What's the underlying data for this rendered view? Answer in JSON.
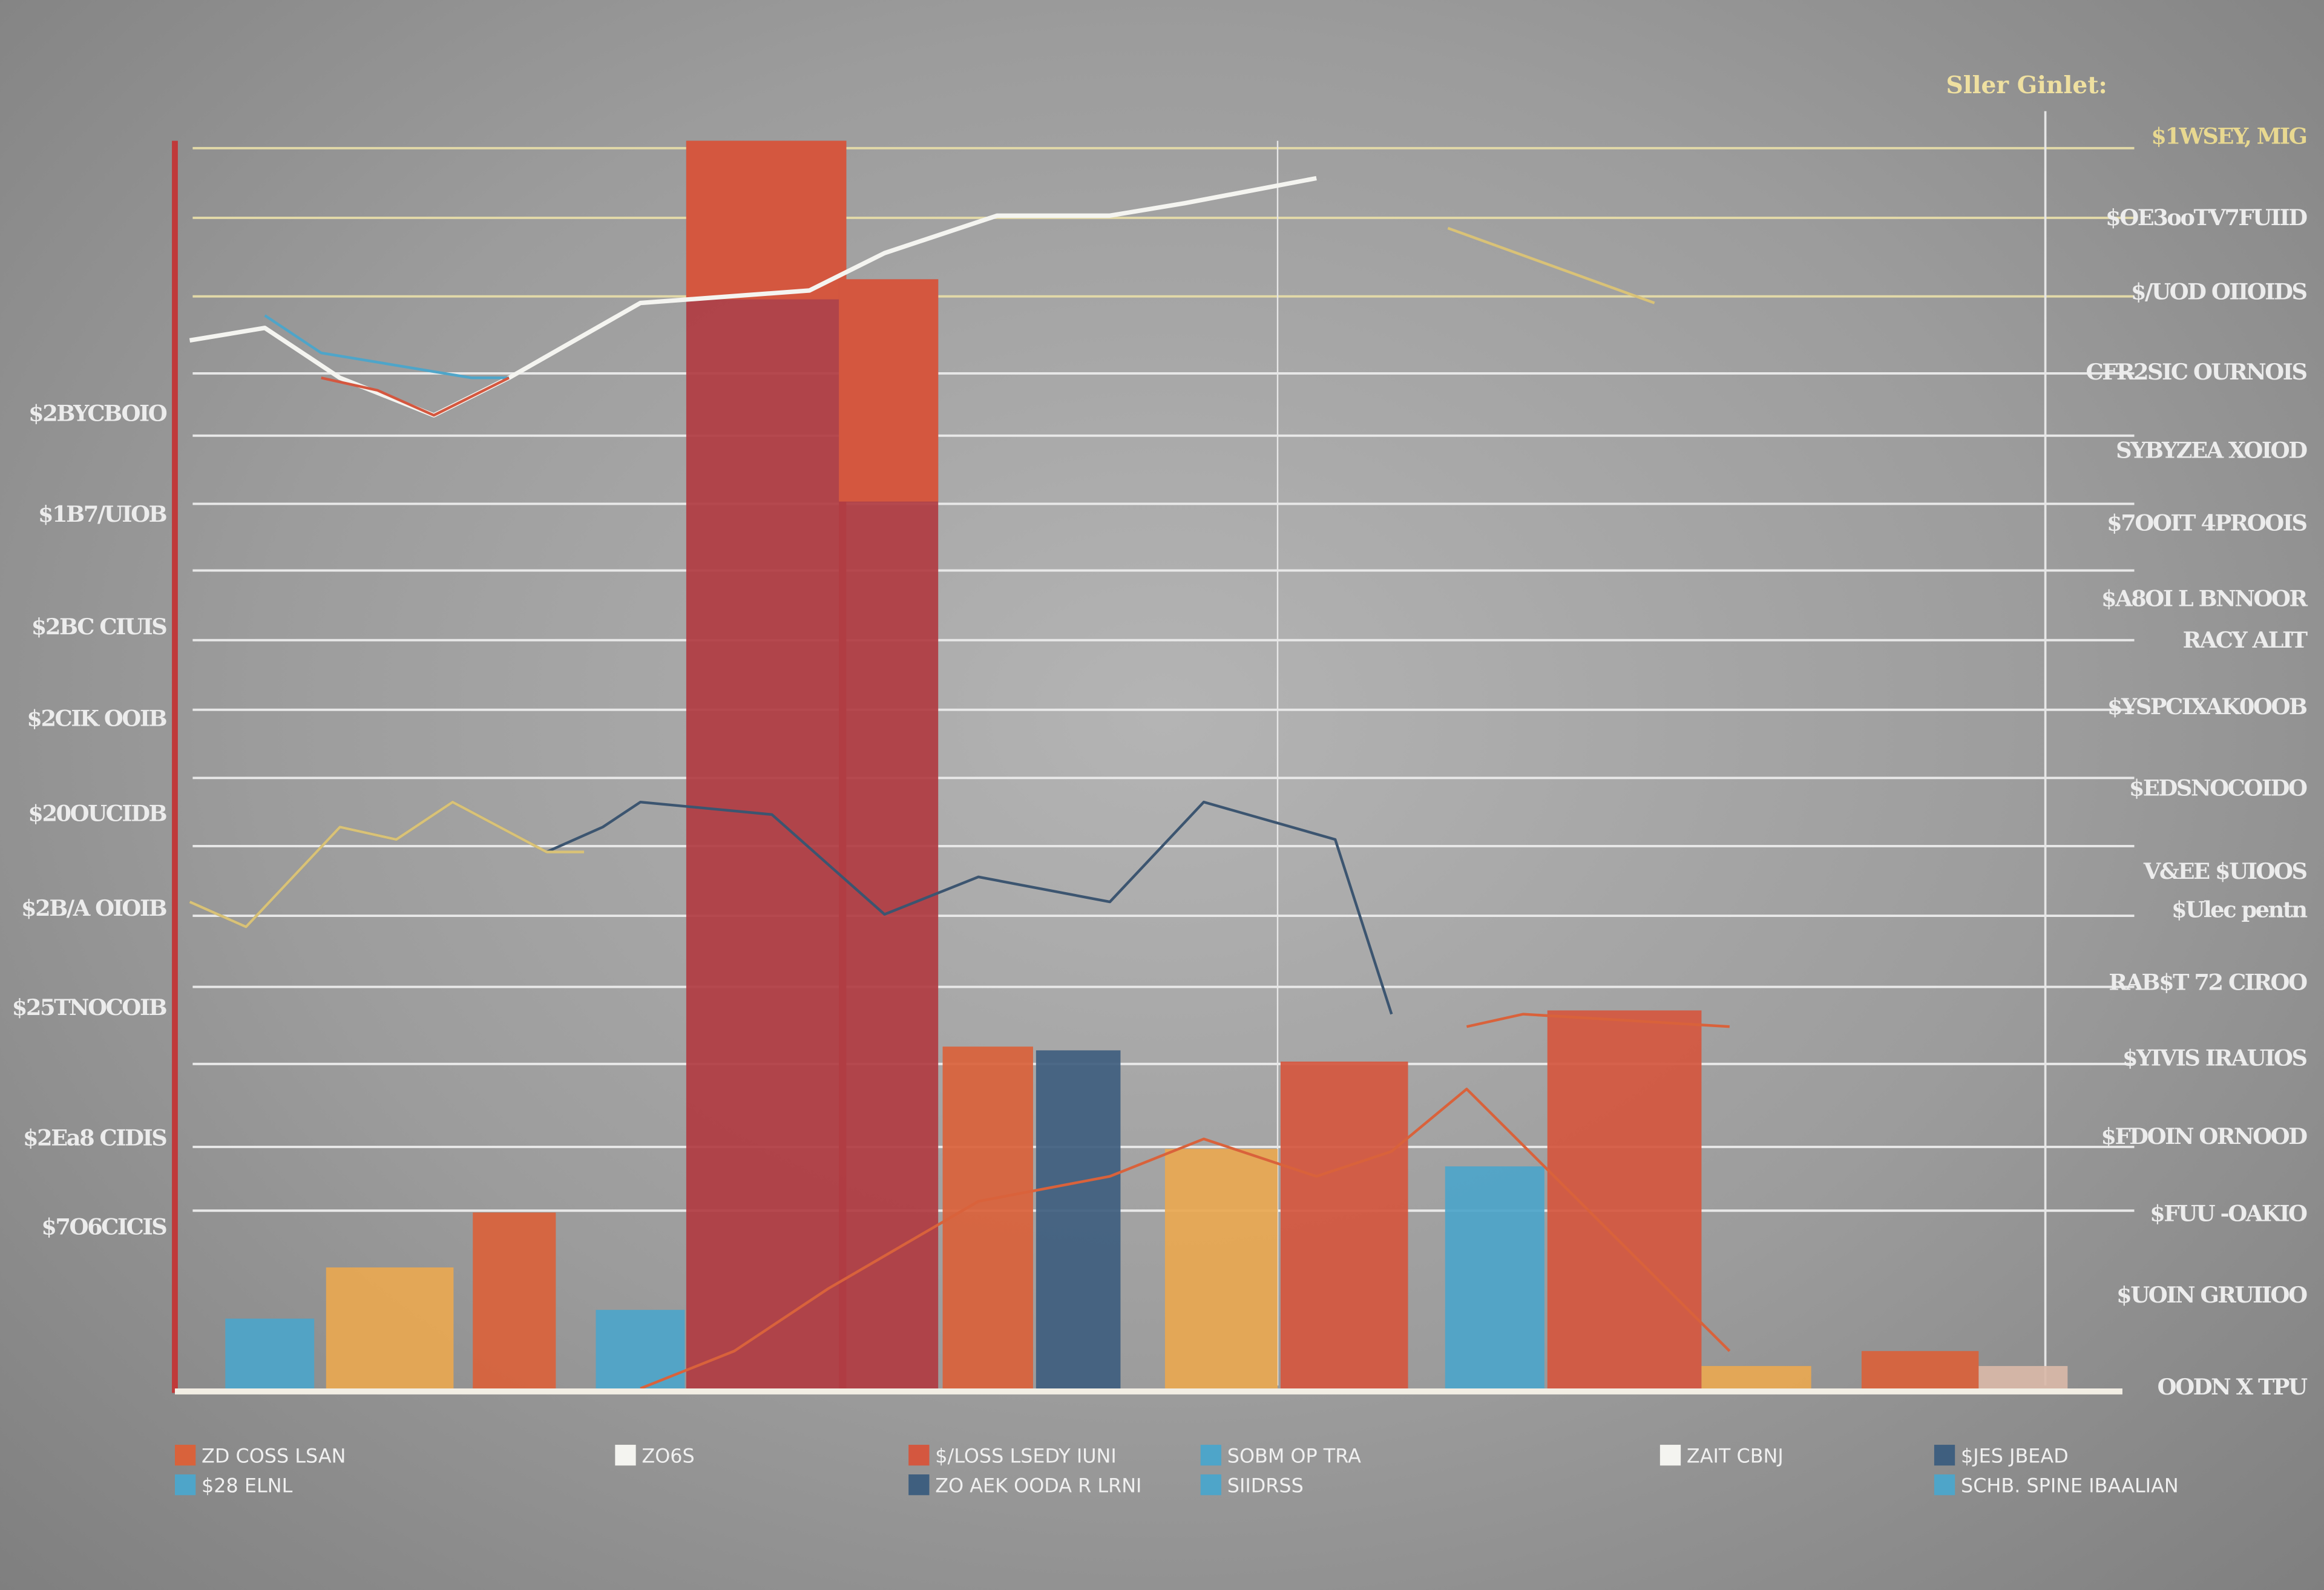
{
  "chart_data": {
    "type": "bar",
    "title": "Sller Ginlet:",
    "ylim": [
      0,
      100
    ],
    "grid": true,
    "legend_position": "bottom",
    "left_tick_labels": [
      "$2BYCBOIO",
      "$1B7/UIOB",
      "$2BC CIUIS",
      "$2CIK OOIB",
      "$20OUCIDB",
      "$2B/A OIOIB",
      "$25TNOCOIB",
      "$2Ea8 CIDIS",
      "$7O6CICIS"
    ],
    "right_tick_labels": [
      "$1WSEY, MIG",
      "$OE3ooTV7FUIID",
      "$/UOD OIIOIDS",
      "CFR2SIC OURNOIS",
      "SYBYZEA XOIOD",
      "$7OOIT 4PROOIS",
      "$A8OI L BNNOOR",
      "RACY ALIT",
      "$YSPCIXAK0OOB",
      "$EDSNOCOIDO",
      "V&EE $UIOOS",
      "$Ulec pentn",
      "RAB$T 72 CIROO",
      "$YIVIS IRAUIOS",
      "$FDOIN ORNOOD",
      "$FUU -OAKIO",
      "$UOIN GRUIIOO",
      "OODN X TPU"
    ],
    "colors": {
      "red": "#d4573f",
      "crimson": "#b03c43",
      "orange": "#d9623b",
      "amber": "#e8a852",
      "blue": "#4ea5c9",
      "navy": "#3f5f7f",
      "pale": "#d8b8a8",
      "white": "#f4f4f0",
      "gold": "#d9c277",
      "navyline": "#3c5570",
      "magenta": "#b03a5a"
    },
    "bars": [
      {
        "value": 5.6,
        "color": "blue"
      },
      {
        "value": 9.7,
        "color": "amber"
      },
      {
        "value": 14.1,
        "color": "orange"
      },
      {
        "value": 6.3,
        "color": "blue"
      },
      {
        "value": 100,
        "color": "crimson"
      },
      {
        "value": 88.9,
        "color": "crimson"
      },
      {
        "value": 27.4,
        "color": "orange"
      },
      {
        "value": 27.1,
        "color": "navy"
      },
      {
        "value": 19.2,
        "color": "amber"
      },
      {
        "value": 26.2,
        "color": "red"
      },
      {
        "value": 17.8,
        "color": "blue"
      },
      {
        "value": 30.3,
        "color": "red"
      },
      {
        "value": 1.8,
        "color": "amber"
      },
      {
        "value": 3.0,
        "color": "orange"
      },
      {
        "value": 1.8,
        "color": "pale"
      }
    ],
    "series": [
      {
        "color": "white",
        "points": [
          [
            0,
            84
          ],
          [
            4,
            85
          ],
          [
            8,
            81
          ],
          [
            13,
            78
          ],
          [
            17,
            81
          ],
          [
            24,
            87
          ],
          [
            33,
            88
          ],
          [
            37,
            91
          ],
          [
            43,
            94
          ],
          [
            49,
            94
          ],
          [
            53,
            95
          ],
          [
            60,
            97
          ]
        ]
      },
      {
        "color": "blue",
        "points": [
          [
            4,
            86
          ],
          [
            7,
            83
          ],
          [
            11,
            82
          ],
          [
            15,
            81
          ],
          [
            17,
            81
          ]
        ]
      },
      {
        "color": "red",
        "points": [
          [
            7,
            81
          ],
          [
            10,
            80
          ],
          [
            13,
            78
          ],
          [
            17,
            81
          ]
        ]
      },
      {
        "color": "gold",
        "points": [
          [
            67,
            93
          ],
          [
            78,
            87
          ]
        ]
      },
      {
        "color": "navyline",
        "points": [
          [
            0,
            39
          ],
          [
            3,
            37
          ],
          [
            8,
            45
          ],
          [
            11,
            44
          ],
          [
            14,
            47
          ],
          [
            19,
            43
          ],
          [
            22,
            45
          ],
          [
            24,
            47
          ],
          [
            31,
            46
          ],
          [
            34,
            42
          ],
          [
            37,
            38
          ],
          [
            42,
            41
          ],
          [
            49,
            39
          ],
          [
            54,
            47
          ],
          [
            61,
            44
          ],
          [
            64,
            30
          ]
        ]
      },
      {
        "color": "gold",
        "points": [
          [
            0,
            39
          ],
          [
            3,
            37
          ],
          [
            8,
            45
          ],
          [
            11,
            44
          ],
          [
            14,
            47
          ],
          [
            19,
            43
          ],
          [
            21,
            43
          ]
        ]
      },
      {
        "color": "orange",
        "points": [
          [
            24,
            0
          ],
          [
            29,
            3
          ],
          [
            34,
            8
          ],
          [
            42,
            15
          ],
          [
            49,
            17
          ],
          [
            54,
            20
          ],
          [
            60,
            17
          ],
          [
            64,
            19
          ],
          [
            68,
            24
          ],
          [
            82,
            3
          ]
        ]
      },
      {
        "color": "orange",
        "points": [
          [
            68,
            29
          ],
          [
            71,
            30
          ],
          [
            82,
            29
          ]
        ]
      }
    ],
    "legend": [
      {
        "label": "ZD COSS LSAN",
        "color": "orange"
      },
      {
        "label": "$28 ELNL",
        "color": "blue"
      },
      {
        "label": "ZO6S",
        "color": "white"
      },
      {
        "label": "$/LOSS LSEDY  IUNI",
        "color": "red"
      },
      {
        "label": "ZO AEK OODA R  LRNI",
        "color": "navy"
      },
      {
        "label": "SOBM OP TRA",
        "color": "blue"
      },
      {
        "label": "SIIDRSS",
        "color": "blue"
      },
      {
        "label": "ZAIT CBNJ",
        "color": "white"
      },
      {
        "label": "$JES JBEAD",
        "color": "navy"
      },
      {
        "label": "SCHB. SPINE IBAALIAN",
        "color": "blue"
      }
    ]
  }
}
